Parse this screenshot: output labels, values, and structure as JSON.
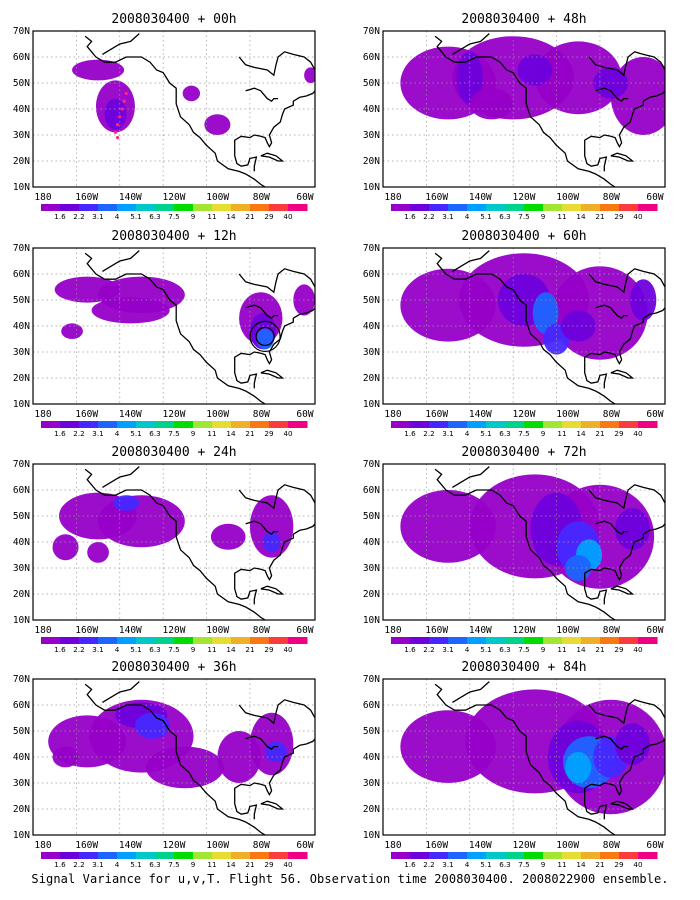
{
  "colorbar": {
    "labels": [
      "1.6",
      "2.2",
      "3.1",
      "4",
      "5.1",
      "6.3",
      "7.5",
      "9",
      "11",
      "14",
      "21",
      "29",
      "40"
    ],
    "colors": [
      "#9600c8",
      "#6e00dc",
      "#4628ff",
      "#1e64ff",
      "#00a0ff",
      "#00c8c8",
      "#00d28c",
      "#00dc00",
      "#a0e632",
      "#e6dc32",
      "#f0af28",
      "#fa7814",
      "#fa3c3c",
      "#f00082"
    ]
  },
  "axes": {
    "lon_labels": [
      "180",
      "160W",
      "140W",
      "120W",
      "100W",
      "80W",
      "60W"
    ],
    "lat_labels": [
      "70N",
      "60N",
      "50N",
      "40N",
      "30N",
      "20N",
      "10N"
    ]
  },
  "panels": [
    {
      "title": "2008030400 + 00h",
      "level": 0
    },
    {
      "title": "2008030400 + 48h",
      "level": 4
    },
    {
      "title": "2008030400 + 12h",
      "level": 1
    },
    {
      "title": "2008030400 + 60h",
      "level": 5
    },
    {
      "title": "2008030400 + 24h",
      "level": 2
    },
    {
      "title": "2008030400 + 72h",
      "level": 6
    },
    {
      "title": "2008030400 + 36h",
      "level": 3
    },
    {
      "title": "2008030400 + 84h",
      "level": 7
    }
  ],
  "caption": "Signal Variance for u,v,T. Flight 56. Observation time 2008030400. 2008022900 ensemble.",
  "map_colors": {
    "background": "#ffffff",
    "coast": "#000000",
    "grid": "#9a9a9a",
    "marker": "#ff2a7a"
  }
}
